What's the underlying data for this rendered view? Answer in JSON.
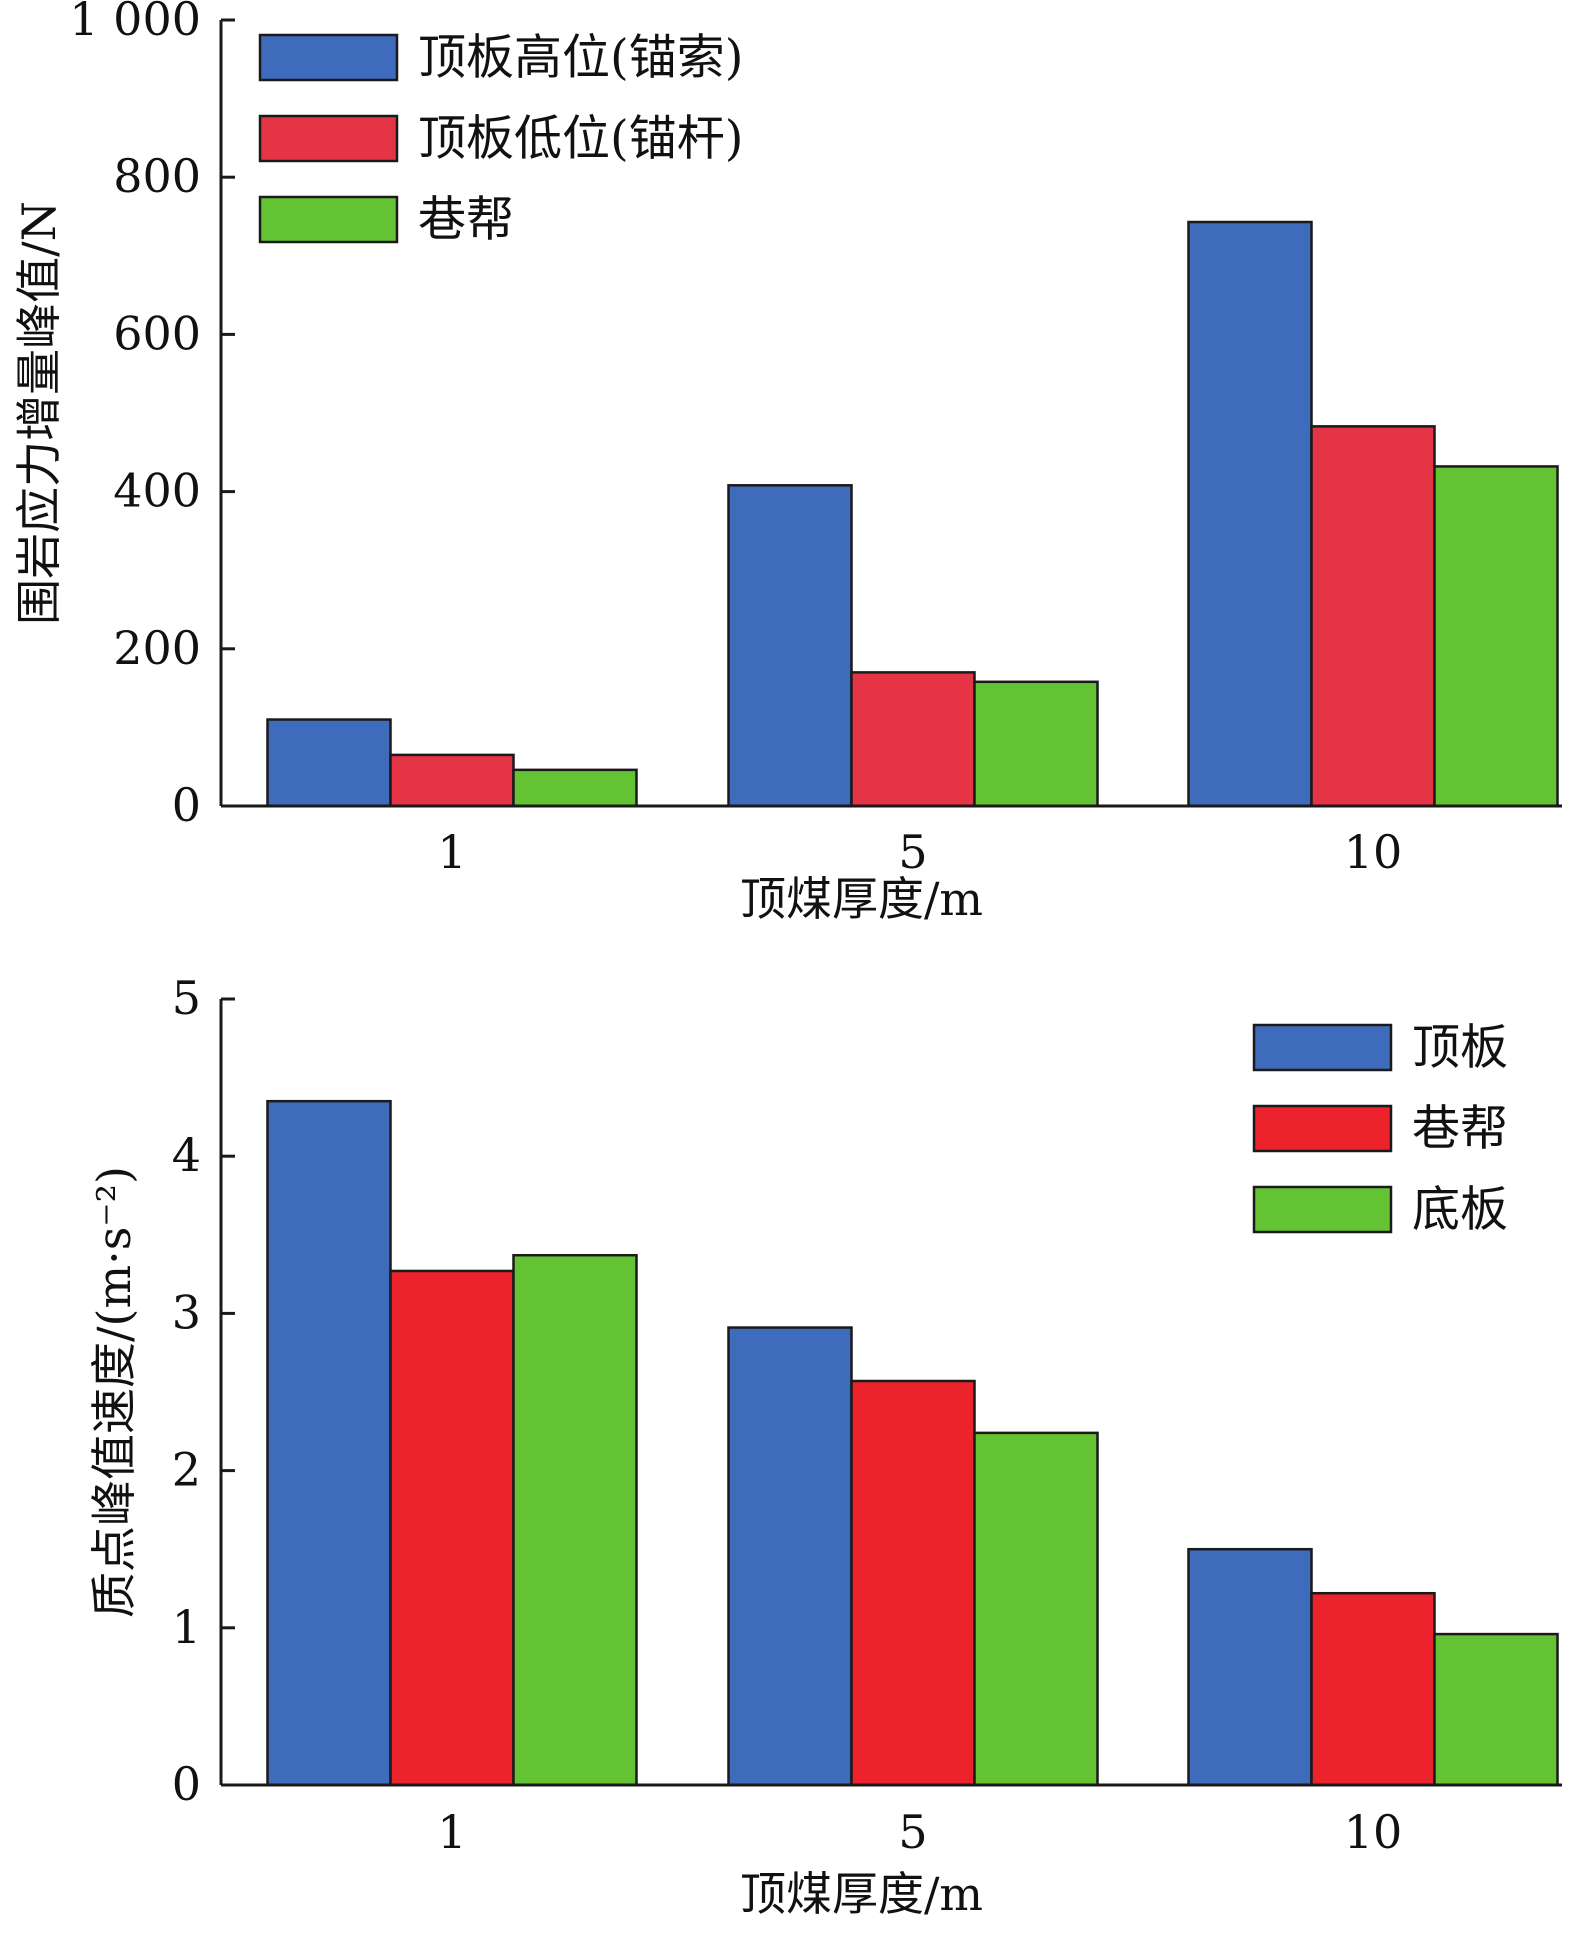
{
  "chart_data": [
    {
      "type": "bar",
      "title": "",
      "xlabel": "顶煤厚度/m",
      "ylabel": "围岩应力增量峰值/N",
      "categories": [
        "1",
        "5",
        "10"
      ],
      "ylim": [
        0,
        1000
      ],
      "yticks": [
        0,
        200,
        400,
        600,
        800,
        1000
      ],
      "ytick_labels": [
        "0",
        "200",
        "400",
        "600",
        "800",
        "1 000"
      ],
      "legend": "top-left",
      "grid": false,
      "series": [
        {
          "name": "顶板高位(锚索)",
          "color": "#3f6bbd",
          "values": [
            110,
            408,
            743
          ]
        },
        {
          "name": "顶板低位(锚杆)",
          "color": "#e63447",
          "values": [
            65,
            170,
            483
          ]
        },
        {
          "name": "巷帮",
          "color": "#64c332",
          "values": [
            46,
            158,
            432
          ]
        }
      ]
    },
    {
      "type": "bar",
      "title": "",
      "xlabel": "顶煤厚度/m",
      "ylabel": "质点峰值速度/(m·s⁻²)",
      "categories": [
        "1",
        "5",
        "10"
      ],
      "ylim": [
        0,
        5
      ],
      "yticks": [
        0,
        1,
        2,
        3,
        4,
        5
      ],
      "ytick_labels": [
        "0",
        "1",
        "2",
        "3",
        "4",
        "5"
      ],
      "legend": "top-right",
      "grid": false,
      "series": [
        {
          "name": "顶板",
          "color": "#3f6bbd",
          "values": [
            4.35,
            2.91,
            1.5
          ]
        },
        {
          "name": "巷帮",
          "color": "#ec232c",
          "values": [
            3.27,
            2.57,
            1.22
          ]
        },
        {
          "name": "底板",
          "color": "#64c332",
          "values": [
            3.37,
            2.24,
            0.96
          ]
        }
      ]
    }
  ]
}
